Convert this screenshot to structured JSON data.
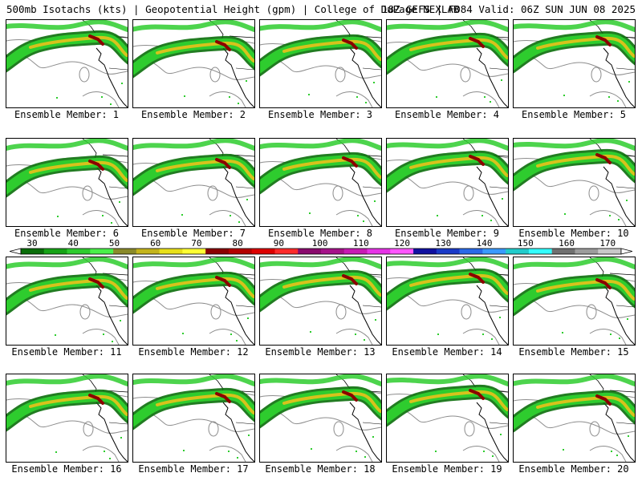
{
  "header": {
    "left": "500mb Isotachs (kts) | Geopotential Height (gpm) | College of DuPage NEXLAB",
    "right": "18Z GEFS | F084 Valid: 06Z SUN JUN 08 2025"
  },
  "label_prefix": "Ensemble Member: ",
  "members": [
    "1",
    "2",
    "3",
    "4",
    "5",
    "6",
    "7",
    "8",
    "9",
    "10",
    "11",
    "12",
    "13",
    "14",
    "15",
    "16",
    "17",
    "18",
    "19",
    "20"
  ],
  "colorbar": {
    "ticks": [
      "30",
      "40",
      "50",
      "60",
      "70",
      "80",
      "90",
      "100",
      "110",
      "120",
      "130",
      "140",
      "150",
      "160",
      "170"
    ],
    "colors": [
      "#0a6e0a",
      "#17a317",
      "#2ecc2e",
      "#49f049",
      "#8a8a2a",
      "#c4b41c",
      "#e8e01a",
      "#ffff33",
      "#8b0000",
      "#b30000",
      "#dd0000",
      "#ff2a2a",
      "#8b0a6e",
      "#a6128a",
      "#c81ab4",
      "#e633e6",
      "#ff55ff",
      "#1010a0",
      "#1a3ac8",
      "#2a6ae8",
      "#3a9aff",
      "#22cccc",
      "#33ffff",
      "#707070",
      "#9c9c9c",
      "#c8c8c8"
    ]
  },
  "colors": {
    "jet_core": "#8b0000",
    "jet_mid": "#d7c21c",
    "jet_outer": "#2ecc2e",
    "jet_dark": "#0a6e0a",
    "height_contour": "#8c8c8c",
    "map_lines": "#000000"
  }
}
